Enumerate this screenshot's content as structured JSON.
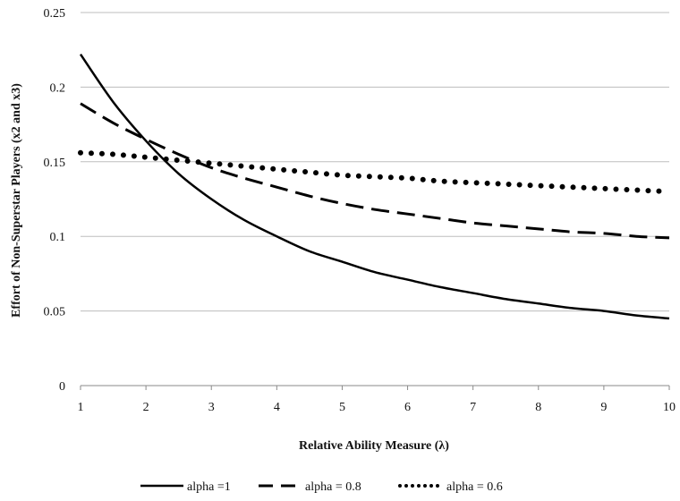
{
  "chart_data": {
    "type": "line",
    "title": "",
    "xlabel": "Relative Ability Measure (λ)",
    "ylabel": "Effort of Non-Superstar Players (x2 and x3)",
    "xlim": [
      1,
      10
    ],
    "ylim": [
      0,
      0.25
    ],
    "x_ticks": [
      "1",
      "2",
      "3",
      "4",
      "5",
      "6",
      "7",
      "8",
      "9",
      "10"
    ],
    "y_ticks": [
      "0",
      "0.05",
      "0.1",
      "0.15",
      "0.2",
      "0.25"
    ],
    "grid": "horizontal",
    "legend": "bottom",
    "series": [
      {
        "name": "alpha =1",
        "style": "solid",
        "color": "#000000",
        "points": [
          [
            1,
            0.222
          ],
          [
            1.5,
            0.19
          ],
          [
            2,
            0.164
          ],
          [
            2.5,
            0.142
          ],
          [
            3,
            0.125
          ],
          [
            3.5,
            0.111
          ],
          [
            4,
            0.1
          ],
          [
            4.5,
            0.09
          ],
          [
            5,
            0.083
          ],
          [
            5.5,
            0.076
          ],
          [
            6,
            0.071
          ],
          [
            6.5,
            0.066
          ],
          [
            7,
            0.062
          ],
          [
            7.5,
            0.058
          ],
          [
            8,
            0.055
          ],
          [
            8.5,
            0.052
          ],
          [
            9,
            0.05
          ],
          [
            9.5,
            0.047
          ],
          [
            10,
            0.045
          ]
        ]
      },
      {
        "name": "alpha = 0.8",
        "style": "dashed",
        "color": "#000000",
        "points": [
          [
            1,
            0.189
          ],
          [
            1.5,
            0.176
          ],
          [
            2,
            0.165
          ],
          [
            2.5,
            0.155
          ],
          [
            3,
            0.146
          ],
          [
            3.5,
            0.139
          ],
          [
            4,
            0.133
          ],
          [
            4.5,
            0.127
          ],
          [
            5,
            0.122
          ],
          [
            5.5,
            0.118
          ],
          [
            6,
            0.115
          ],
          [
            6.5,
            0.112
          ],
          [
            7,
            0.109
          ],
          [
            7.5,
            0.107
          ],
          [
            8,
            0.105
          ],
          [
            8.5,
            0.103
          ],
          [
            9,
            0.102
          ],
          [
            9.5,
            0.1
          ],
          [
            10,
            0.099
          ]
        ]
      },
      {
        "name": "alpha = 0.6",
        "style": "dotted",
        "color": "#000000",
        "points": [
          [
            1,
            0.156
          ],
          [
            1.5,
            0.155
          ],
          [
            2,
            0.153
          ],
          [
            2.5,
            0.151
          ],
          [
            3,
            0.149
          ],
          [
            3.5,
            0.147
          ],
          [
            4,
            0.145
          ],
          [
            4.5,
            0.143
          ],
          [
            5,
            0.141
          ],
          [
            5.5,
            0.14
          ],
          [
            6,
            0.139
          ],
          [
            6.5,
            0.137
          ],
          [
            7,
            0.136
          ],
          [
            7.5,
            0.135
          ],
          [
            8,
            0.134
          ],
          [
            8.5,
            0.133
          ],
          [
            9,
            0.132
          ],
          [
            9.5,
            0.131
          ],
          [
            10,
            0.13
          ]
        ]
      }
    ]
  }
}
